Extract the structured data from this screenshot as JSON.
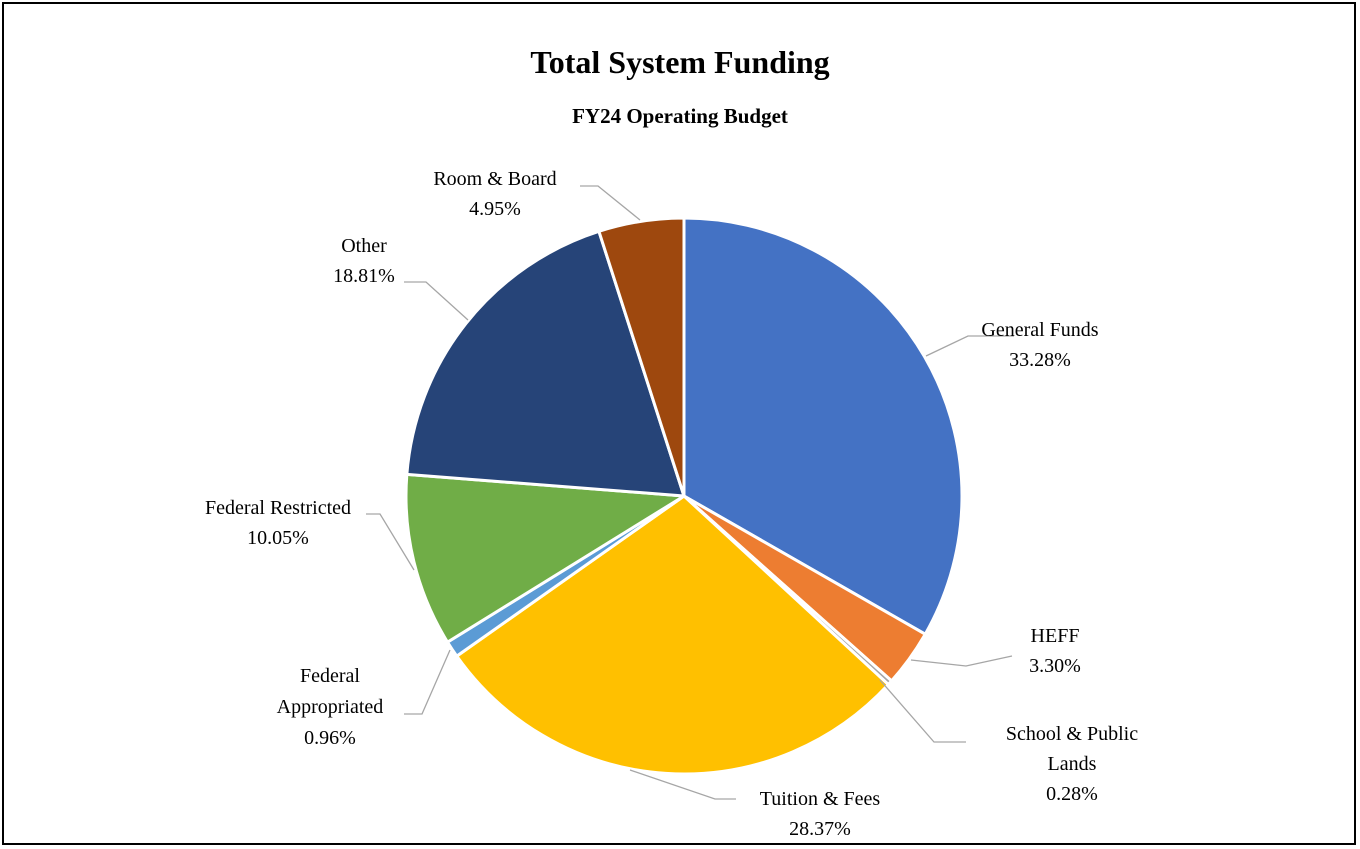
{
  "chart_data": {
    "type": "pie",
    "title": "Total System Funding",
    "subtitle": "FY24 Operating Budget",
    "slices": [
      {
        "name": "General Funds",
        "value": 33.28,
        "label": "33.28%",
        "color": "#4472C4"
      },
      {
        "name": "HEFF",
        "value": 3.3,
        "label": "3.30%",
        "color": "#ED7D31"
      },
      {
        "name": "School & Public Lands",
        "value": 0.28,
        "label": "0.28%",
        "color": "#A5A5A5"
      },
      {
        "name": "Tuition & Fees",
        "value": 28.37,
        "label": "28.37%",
        "color": "#FFC000"
      },
      {
        "name": "Federal Appropriated",
        "value": 0.96,
        "label": "0.96%",
        "color": "#5B9BD5"
      },
      {
        "name": "Federal Restricted",
        "value": 10.05,
        "label": "10.05%",
        "color": "#70AD47"
      },
      {
        "name": "Other",
        "value": 18.81,
        "label": "18.81%",
        "color": "#264478"
      },
      {
        "name": "Room & Board",
        "value": 4.95,
        "label": "4.95%",
        "color": "#9E480E"
      }
    ],
    "label_lines": [
      [
        "General Funds",
        "33.28%"
      ],
      [
        "HEFF",
        "3.30%"
      ],
      [
        "School & Public",
        "Lands",
        "0.28%"
      ],
      [
        "Tuition & Fees",
        "28.37%"
      ],
      [
        "Federal",
        "Appropriated",
        "0.96%"
      ],
      [
        "Federal Restricted",
        "10.05%"
      ],
      [
        "Other",
        "18.81%"
      ],
      [
        "Room & Board",
        "4.95%"
      ]
    ],
    "legend": "none",
    "start_angle": "12 o'clock, clockwise"
  }
}
